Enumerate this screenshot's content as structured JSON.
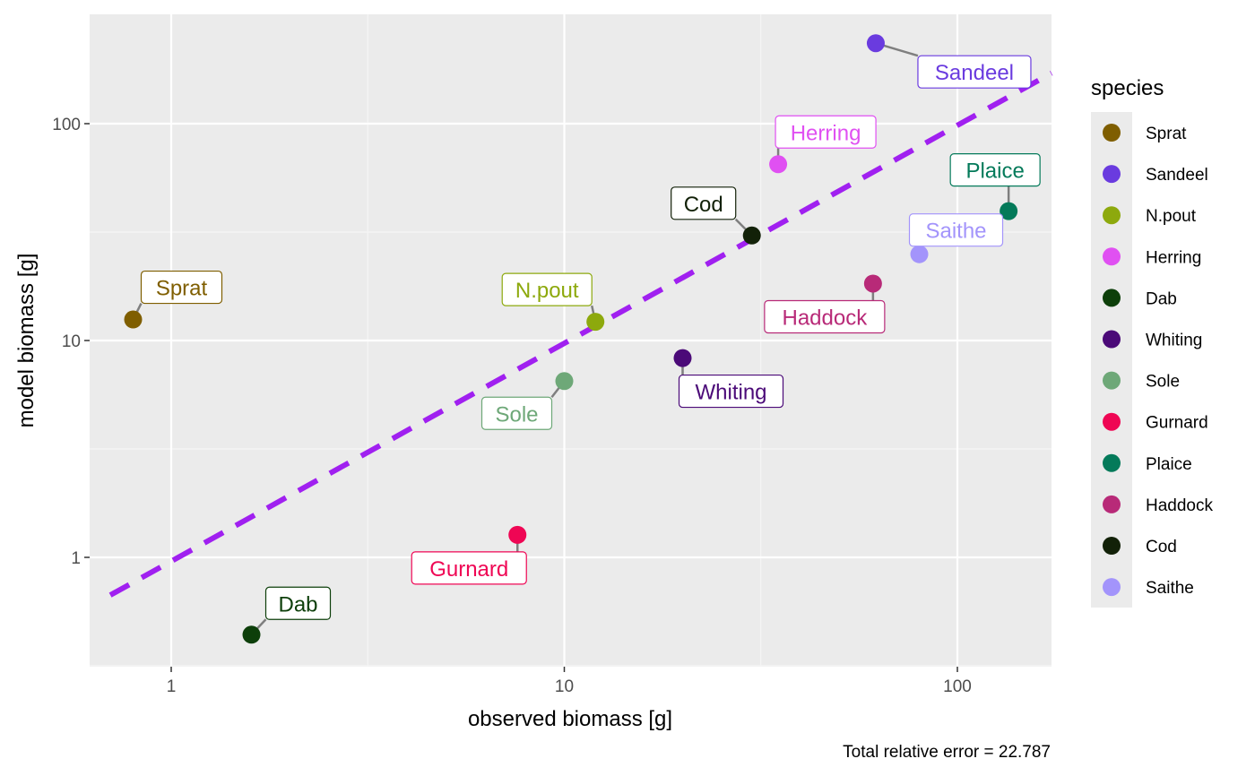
{
  "chart_data": {
    "type": "scatter",
    "title": "",
    "xlabel": "observed biomass [g]",
    "ylabel": "model biomass [g]",
    "x_scale": "log10",
    "y_scale": "log10",
    "xlim": [
      0.65,
      180
    ],
    "ylim": [
      0.32,
      320
    ],
    "x_ticks": [
      1,
      10,
      100
    ],
    "x_tick_labels": [
      "1",
      "10",
      "100"
    ],
    "y_ticks": [
      1,
      10,
      100
    ],
    "y_tick_labels": [
      "1",
      "10",
      "100"
    ],
    "grid": true,
    "legend_title": "species",
    "legend_position": "right",
    "reference_line": {
      "type": "identity",
      "style": "dashed",
      "color": "#a020f0"
    },
    "caption": "Total relative error = 22.787",
    "points": [
      {
        "species": "Sprat",
        "x": 0.8,
        "y": 12.5,
        "color": "#7f5e00"
      },
      {
        "species": "Sandeel",
        "x": 62,
        "y": 235,
        "color": "#6a3bdf"
      },
      {
        "species": "N.pout",
        "x": 12,
        "y": 12.2,
        "color": "#8da90d"
      },
      {
        "species": "Herring",
        "x": 35,
        "y": 65,
        "color": "#e050f2"
      },
      {
        "species": "Dab",
        "x": 1.6,
        "y": 0.44,
        "color": "#0d3f0a"
      },
      {
        "species": "Whiting",
        "x": 20,
        "y": 8.3,
        "color": "#4b0a78"
      },
      {
        "species": "Sole",
        "x": 10,
        "y": 6.5,
        "color": "#6ea878"
      },
      {
        "species": "Gurnard",
        "x": 7.6,
        "y": 1.27,
        "color": "#ef0654"
      },
      {
        "species": "Plaice",
        "x": 135,
        "y": 39.5,
        "color": "#047a5a"
      },
      {
        "species": "Haddock",
        "x": 61,
        "y": 18.3,
        "color": "#b82a78"
      },
      {
        "species": "Cod",
        "x": 30,
        "y": 30.5,
        "color": "#122108"
      },
      {
        "species": "Saithe",
        "x": 80,
        "y": 25,
        "color": "#a394fb"
      }
    ]
  }
}
